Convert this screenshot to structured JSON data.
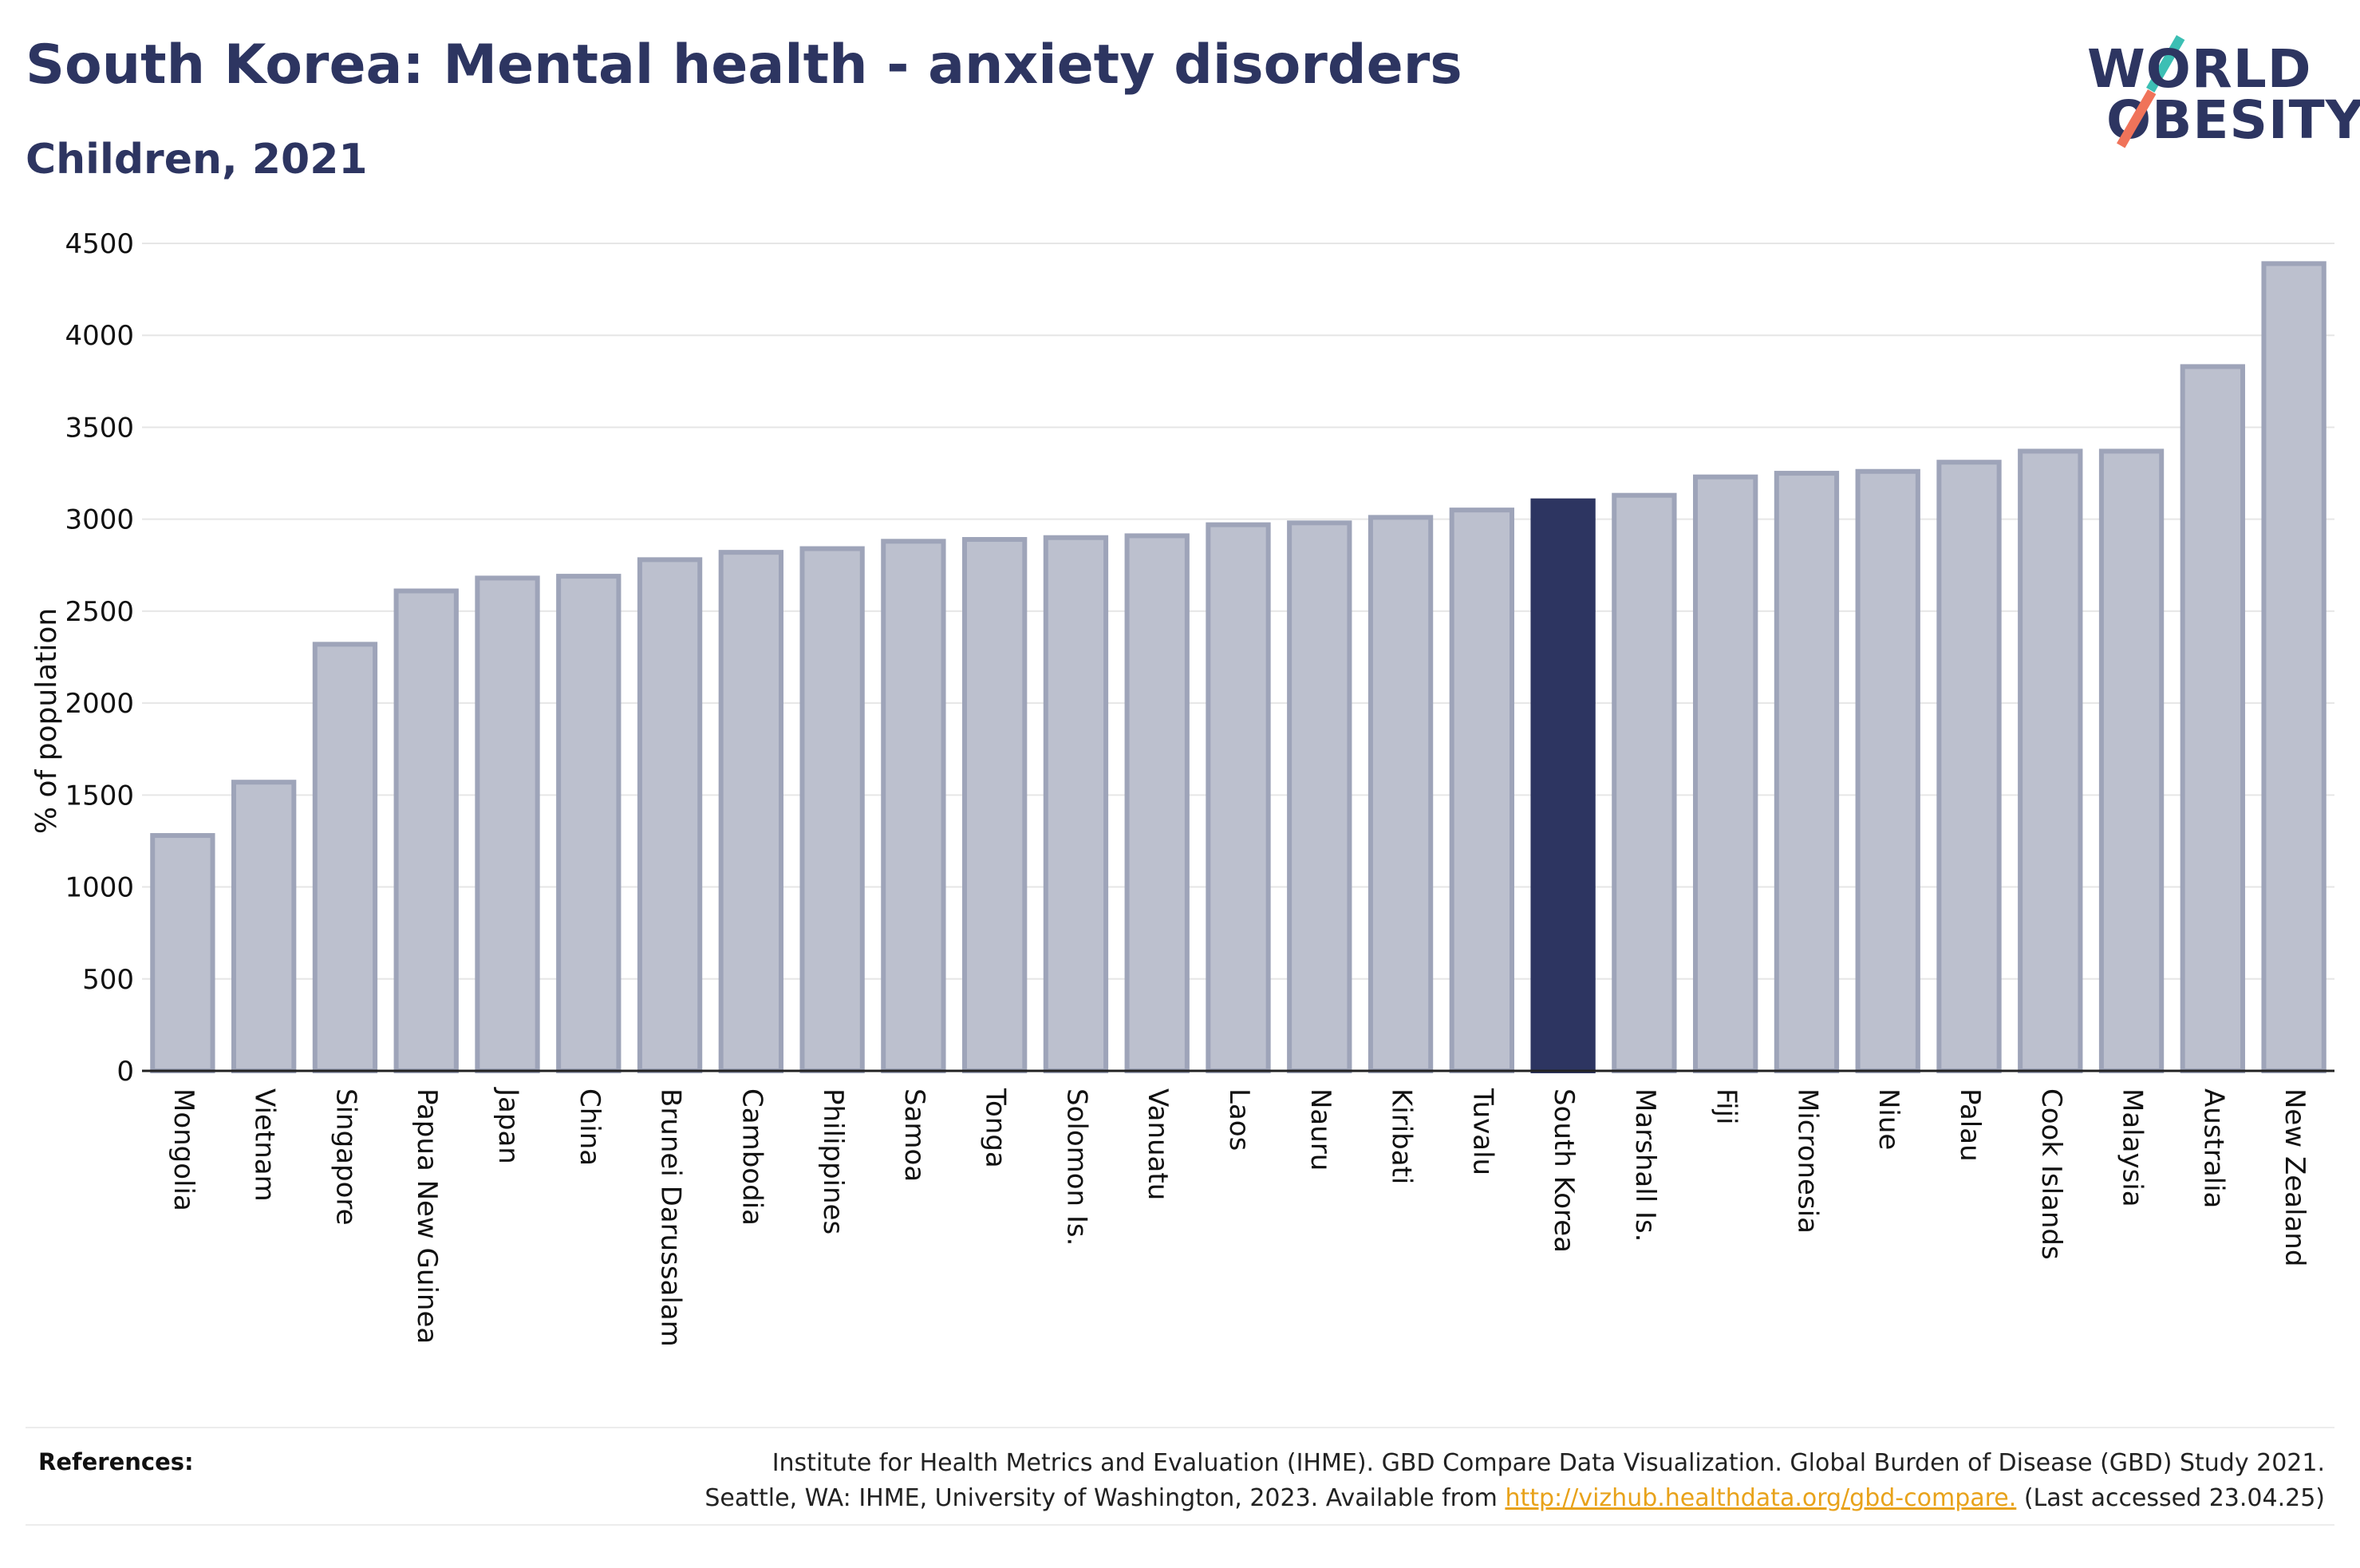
{
  "header": {
    "title": "South Korea: Mental health - anxiety disorders",
    "subtitle": "Children, 2021"
  },
  "logo": {
    "line1": "WORLD",
    "line2": "OBESITY",
    "accent_colors": [
      "#f0735a",
      "#3cbfb4"
    ]
  },
  "chart_data": {
    "type": "bar",
    "title": "",
    "xlabel": "",
    "ylabel": "% of population",
    "ylim": [
      0,
      4500
    ],
    "yticks": [
      0,
      500,
      1000,
      1500,
      2000,
      2500,
      3000,
      3500,
      4000,
      4500
    ],
    "grid": true,
    "highlight": "South Korea",
    "colors": {
      "bar": "#bcc0ce",
      "bar_border": "#9ea4b9",
      "highlight": "#2d3561"
    },
    "categories": [
      "Mongolia",
      "Vietnam",
      "Singapore",
      "Papua New Guinea",
      "Japan",
      "China",
      "Brunei Darussalam",
      "Cambodia",
      "Philippines",
      "Samoa",
      "Tonga",
      "Solomon Is.",
      "Vanuatu",
      "Laos",
      "Nauru",
      "Kiribati",
      "Tuvalu",
      "South Korea",
      "Marshall Is.",
      "Fiji",
      "Micronesia",
      "Niue",
      "Palau",
      "Cook Islands",
      "Malaysia",
      "Australia",
      "New Zealand"
    ],
    "values": [
      1280,
      1570,
      2320,
      2610,
      2680,
      2690,
      2780,
      2820,
      2840,
      2880,
      2890,
      2900,
      2910,
      2970,
      2980,
      3010,
      3050,
      3100,
      3130,
      3230,
      3250,
      3260,
      3310,
      3370,
      3370,
      3830,
      4390
    ]
  },
  "references": {
    "label": "References:",
    "line1": "Institute for Health Metrics and Evaluation (IHME). GBD Compare Data Visualization. Global Burden of Disease (GBD) Study 2021.",
    "line2_prefix": "Seattle, WA: IHME, University of Washington, 2023. Available from ",
    "link": "http://vizhub.healthdata.org/gbd-compare.",
    "line2_suffix": " (Last accessed 23.04.25)"
  }
}
